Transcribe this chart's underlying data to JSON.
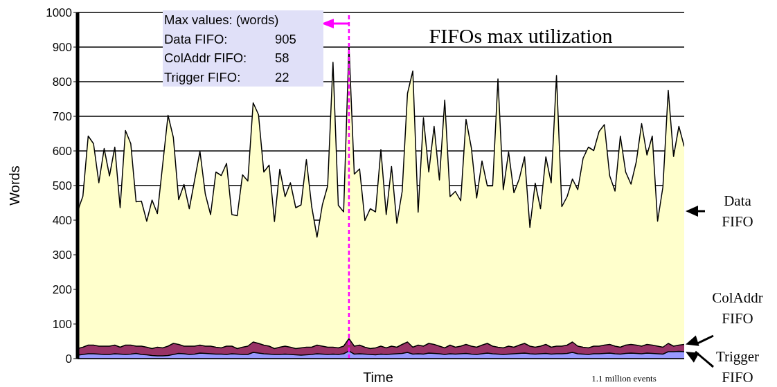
{
  "chart_data": {
    "type": "area",
    "title": "FIFOs max utilization",
    "xlabel": "Time",
    "ylabel": "Words",
    "annotations": [
      "Max values: (words)",
      "Data FIFO: 905",
      "ColAddr FIFO: 58",
      "Trigger FIFO: 22",
      "1.1 million events"
    ],
    "categories": [
      null,
      null,
      null,
      null,
      null,
      null,
      null,
      null,
      null,
      null,
      null,
      null,
      null,
      null,
      null,
      null,
      null,
      null,
      null,
      null,
      null,
      null,
      null,
      null,
      null,
      null,
      null,
      null,
      null,
      null,
      null,
      null,
      null,
      null,
      null,
      null,
      null,
      null,
      null,
      null,
      null,
      null,
      null,
      null,
      null,
      null,
      null,
      null,
      null,
      null,
      null,
      null,
      null,
      null,
      null,
      null,
      null,
      null,
      null,
      null,
      null,
      null,
      null,
      null,
      null,
      null,
      null,
      null,
      null,
      null,
      null,
      null,
      null,
      null,
      null,
      null,
      null,
      null,
      null,
      null,
      null,
      null,
      null,
      null,
      null,
      null,
      null,
      null,
      null,
      null,
      null,
      null,
      null,
      null,
      null,
      null,
      null,
      null,
      null,
      null,
      null,
      null,
      null,
      null,
      null,
      null,
      null,
      null,
      null,
      null,
      null,
      null,
      null,
      null,
      null
    ],
    "series": [
      {
        "name": "Data FIFO",
        "color": "#ffffcc",
        "values": [
          426,
          469,
          643,
          621,
          508,
          607,
          528,
          611,
          436,
          659,
          621,
          453,
          455,
          397,
          458,
          419,
          561,
          703,
          639,
          459,
          503,
          433,
          516,
          599,
          476,
          416,
          539,
          529,
          564,
          416,
          413,
          531,
          513,
          739,
          705,
          539,
          559,
          396,
          547,
          468,
          508,
          436,
          444,
          575,
          439,
          351,
          444,
          499,
          856,
          443,
          424,
          905,
          533,
          548,
          399,
          433,
          424,
          604,
          416,
          555,
          391,
          483,
          766,
          831,
          423,
          696,
          539,
          671,
          516,
          747,
          468,
          483,
          456,
          691,
          609,
          464,
          571,
          499,
          499,
          808,
          488,
          597,
          479,
          519,
          583,
          379,
          507,
          433,
          583,
          508,
          818,
          439,
          468,
          519,
          488,
          579,
          611,
          601,
          656,
          676,
          528,
          484,
          643,
          539,
          504,
          569,
          679,
          588,
          643,
          397,
          496,
          775,
          584,
          671,
          613
        ]
      },
      {
        "name": "ColAddr FIFO",
        "color": "#993366",
        "values": [
          29,
          33,
          39,
          39,
          36,
          36,
          36,
          39,
          33,
          39,
          39,
          36,
          36,
          33,
          29,
          33,
          31,
          36,
          44,
          41,
          36,
          36,
          36,
          39,
          36,
          36,
          33,
          31,
          36,
          36,
          29,
          33,
          36,
          48,
          44,
          39,
          36,
          29,
          33,
          36,
          33,
          29,
          31,
          33,
          33,
          39,
          36,
          33,
          33,
          31,
          36,
          58,
          36,
          39,
          33,
          29,
          31,
          36,
          31,
          36,
          33,
          41,
          48,
          33,
          39,
          36,
          44,
          41,
          36,
          31,
          39,
          33,
          36,
          41,
          36,
          33,
          39,
          44,
          36,
          33,
          31,
          36,
          33,
          39,
          44,
          36,
          33,
          36,
          41,
          33,
          36,
          36,
          39,
          48,
          36,
          33,
          31,
          36,
          36,
          39,
          41,
          36,
          33,
          39,
          41,
          39,
          36,
          41,
          39,
          36,
          33,
          44,
          36,
          39,
          41
        ]
      },
      {
        "name": "Trigger FIFO",
        "color": "#9999ff",
        "values": [
          10,
          12,
          14,
          14,
          13,
          12,
          12,
          14,
          13,
          12,
          13,
          15,
          12,
          11,
          9,
          8,
          8,
          9,
          12,
          15,
          14,
          12,
          13,
          16,
          15,
          14,
          13,
          13,
          12,
          14,
          13,
          12,
          12,
          18,
          16,
          14,
          13,
          12,
          12,
          13,
          12,
          11,
          10,
          11,
          12,
          14,
          13,
          12,
          13,
          12,
          14,
          22,
          13,
          14,
          13,
          12,
          11,
          13,
          12,
          13,
          14,
          15,
          18,
          13,
          14,
          13,
          16,
          15,
          14,
          12,
          14,
          13,
          14,
          15,
          13,
          12,
          14,
          16,
          14,
          13,
          12,
          13,
          14,
          15,
          16,
          14,
          13,
          14,
          15,
          13,
          14,
          14,
          15,
          18,
          14,
          13,
          12,
          14,
          14,
          15,
          16,
          14,
          13,
          15,
          16,
          15,
          14,
          16,
          15,
          14,
          13,
          20,
          20,
          21,
          20
        ]
      }
    ],
    "ylim": [
      0,
      1000
    ],
    "yticks": [
      0,
      100,
      200,
      300,
      400,
      500,
      600,
      700,
      800,
      900,
      1000
    ],
    "grid": "y",
    "tick_labels": "y",
    "legend": "right",
    "ref_lines": [
      {
        "axis": "x",
        "color": "#ff00ff",
        "line_style": "dashed"
      }
    ]
  }
}
